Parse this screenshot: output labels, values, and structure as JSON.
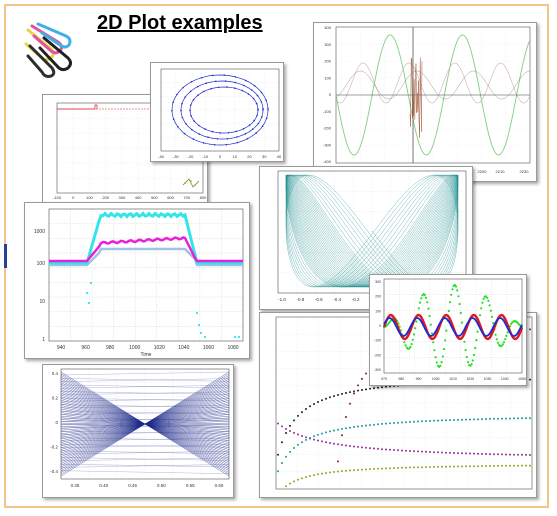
{
  "page": {
    "title": "2D Plot examples",
    "frame_color": "#f3c48a",
    "icon": "paperclips-icon"
  },
  "plots": {
    "log_plot": {
      "yticks": [
        "1000",
        "100",
        "10",
        "1"
      ],
      "xticks": [
        "940",
        "960",
        "980",
        "1000",
        "1020",
        "1040",
        "1060",
        "1080"
      ],
      "xlabel": "Time",
      "colors": [
        "#33e5e8",
        "#ea20d8",
        "#9fc3e3"
      ]
    },
    "time_series": {
      "yticks": [
        "400",
        "300",
        "200",
        "100",
        "0",
        "-100",
        "-200",
        "-300",
        "-400"
      ],
      "xticks": [
        "2196",
        "2200",
        "2210",
        "2230"
      ],
      "colors": [
        "#7fcf7f",
        "#c9a0a0",
        "#7d6a5c"
      ]
    },
    "lissajous": {
      "xticks": [
        "-1.0",
        "-0.8",
        "-0.6",
        "-0.4",
        "-0.2",
        "0"
      ],
      "color": "#1a8a8a"
    },
    "spiral": {
      "xticks": [
        "-40",
        "-30",
        "-20",
        "-10",
        "0",
        "10",
        "20",
        "30",
        "40"
      ],
      "color": "#1f2ccf"
    },
    "step": {
      "xticks": [
        "-100",
        "0",
        "100",
        "200",
        "300",
        "400",
        "500",
        "600",
        "700",
        "800"
      ]
    },
    "wave_overlay": {
      "yticks": [
        "300",
        "200",
        "100",
        "0",
        "-100",
        "-200",
        "-300"
      ],
      "xticks": [
        "970",
        "980",
        "990",
        "1000",
        "1010",
        "1020",
        "1030",
        "1040",
        "1050"
      ],
      "colors": [
        "#22e022",
        "#e01818",
        "#1a2bd8"
      ]
    },
    "envelope": {
      "yticks": [
        "0.4",
        "0.2",
        "0",
        "-0.2",
        "-0.4"
      ],
      "xticks": [
        "0.35",
        "0.40",
        "0.45",
        "0.50",
        "0.55",
        "0.60"
      ],
      "color": "#1e2a8a"
    },
    "decay": {
      "colors": [
        "#8b1a1a",
        "#9a2aa0",
        "#1a9a9a",
        "#222222",
        "#a0a020"
      ]
    }
  }
}
